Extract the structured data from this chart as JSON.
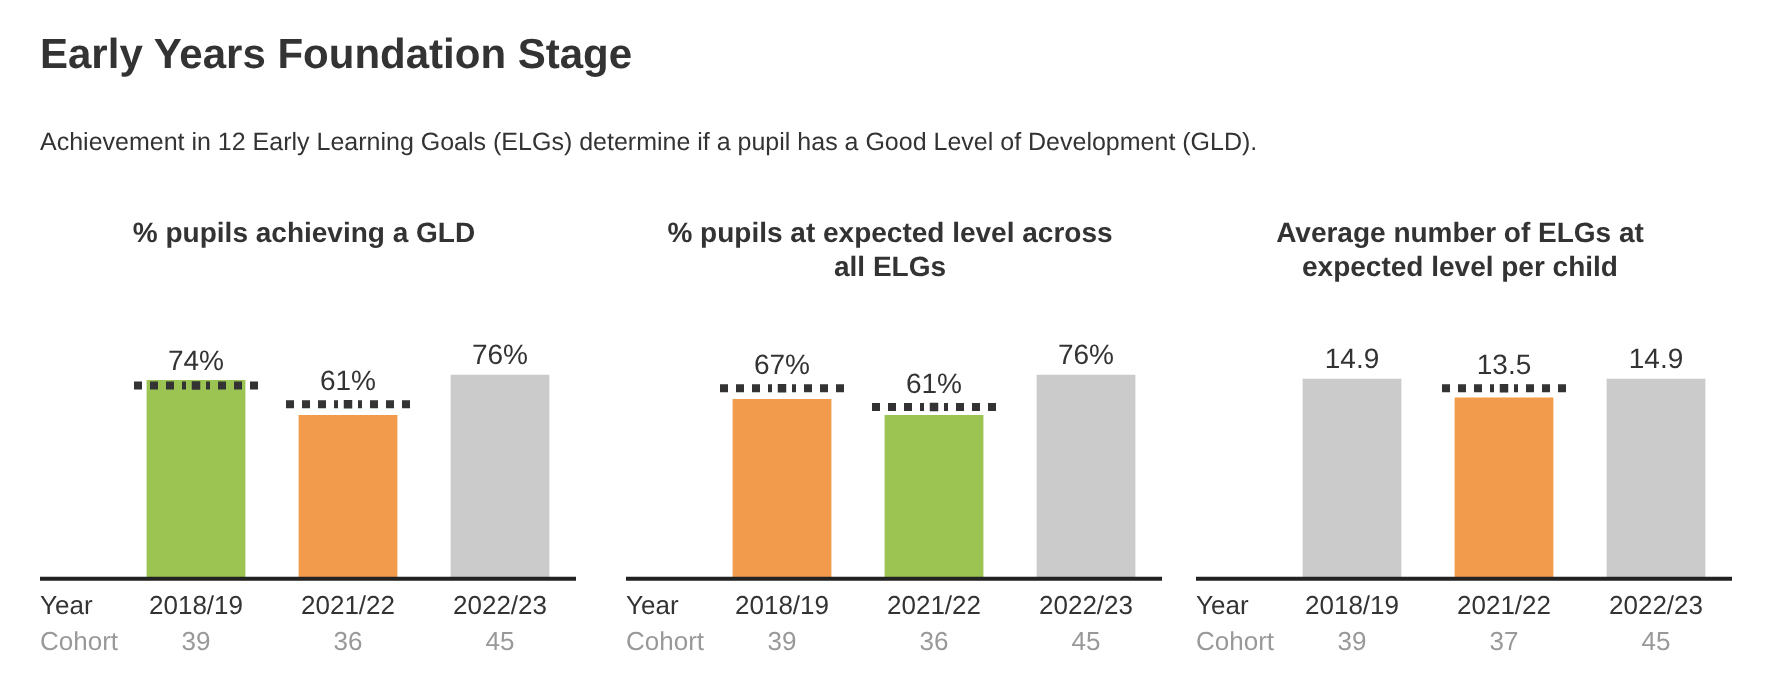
{
  "chart_data": [
    {
      "type": "other",
      "title": "Early Years Foundation Stage",
      "subtitle": "Achievement in 12 Early Learning Goals (ELGs) determine if a pupil has a Good Level of Development (GLD)."
    },
    {
      "type": "bar",
      "title": "% pupils achieving a GLD",
      "categories": [
        "2018/19",
        "2021/22",
        "2022/23"
      ],
      "tick_labels": "x",
      "grid": false,
      "series": [
        {
          "values": [
            74,
            61,
            76
          ],
          "colors": [
            "#9bc453",
            "#f29b4c",
            "#cbcbcb"
          ],
          "value_labels": [
            "74%",
            "61%",
            "76%"
          ]
        },
        {
          "type": "scatter",
          "x": [
            "2018/19",
            "2021/22"
          ],
          "values": [
            72,
            65
          ],
          "color": "#333333",
          "line_style": "dotted",
          "marker": "square"
        }
      ],
      "annotations": [
        "Year",
        "Cohort",
        "39",
        "36",
        "45"
      ]
    },
    {
      "type": "bar",
      "title": "% pupils at expected level across all ELGs",
      "categories": [
        "2018/19",
        "2021/22",
        "2022/23"
      ],
      "tick_labels": "x",
      "grid": false,
      "series": [
        {
          "values": [
            67,
            61,
            76
          ],
          "colors": [
            "#f29b4c",
            "#9bc453",
            "#cbcbcb"
          ],
          "value_labels": [
            "67%",
            "61%",
            "76%"
          ]
        },
        {
          "type": "scatter",
          "x": [
            "2018/19",
            "2021/22"
          ],
          "values": [
            71,
            64
          ],
          "color": "#333333",
          "line_style": "dotted",
          "marker": "square"
        }
      ],
      "annotations": [
        "Year",
        "Cohort",
        "39",
        "36",
        "45"
      ]
    },
    {
      "type": "bar",
      "title": "Average number of ELGs at expected level per child",
      "categories": [
        "2018/19",
        "2021/22",
        "2022/23"
      ],
      "tick_labels": "x",
      "grid": false,
      "series": [
        {
          "values": [
            14.9,
            13.5,
            14.9
          ],
          "colors": [
            "#cbcbcb",
            "#f29b4c",
            "#cbcbcb"
          ],
          "value_labels": [
            "14.9",
            "13.5",
            "14.9"
          ]
        },
        {
          "type": "scatter",
          "x": [
            "2021/22"
          ],
          "values": [
            14.2
          ],
          "color": "#333333",
          "line_style": "dotted",
          "marker": "square"
        }
      ],
      "annotations": [
        "Year",
        "Cohort",
        "39",
        "37",
        "45"
      ]
    }
  ]
}
